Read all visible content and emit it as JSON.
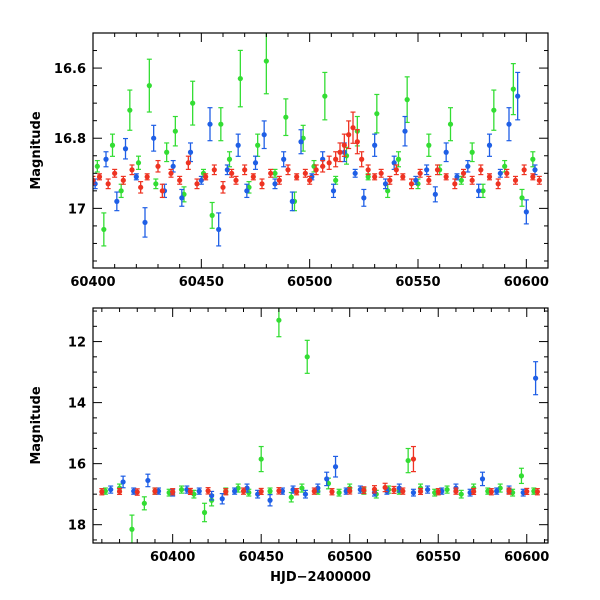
{
  "chart_data": [
    {
      "type": "scatter",
      "panel": "top",
      "title": "",
      "xlabel": "",
      "ylabel": "Magnitude",
      "xlim": [
        60400,
        60610
      ],
      "ylim": [
        17.17,
        16.5
      ],
      "y_inverted": true,
      "xticks": [
        "60400",
        "60450",
        "60500",
        "60550",
        "60600"
      ],
      "yticks": [
        "16.6",
        "16.8",
        "17"
      ],
      "grid": false,
      "legend": "none",
      "series": [
        {
          "color": "#33dd33",
          "points": [
            [
              60402,
              16.88
            ],
            [
              60405,
              17.06
            ],
            [
              60409,
              16.82
            ],
            [
              60413,
              16.95
            ],
            [
              60417,
              16.72
            ],
            [
              60421,
              16.87
            ],
            [
              60426,
              16.65
            ],
            [
              60429,
              16.93
            ],
            [
              60434,
              16.84
            ],
            [
              60438,
              16.78
            ],
            [
              60442,
              16.96
            ],
            [
              60446,
              16.7
            ],
            [
              60451,
              16.9
            ],
            [
              60455,
              17.02
            ],
            [
              60459,
              16.76
            ],
            [
              60463,
              16.86
            ],
            [
              60468,
              16.63
            ],
            [
              60472,
              16.94
            ],
            [
              60476,
              16.82
            ],
            [
              60480,
              16.58
            ],
            [
              60484,
              16.9
            ],
            [
              60489,
              16.74
            ],
            [
              60493,
              16.98
            ],
            [
              60497,
              16.8
            ],
            [
              60502,
              16.88
            ],
            [
              60507,
              16.68
            ],
            [
              60512,
              16.92
            ],
            [
              60517,
              16.85
            ],
            [
              60522,
              16.78
            ],
            [
              60527,
              16.91
            ],
            [
              60531,
              16.73
            ],
            [
              60536,
              16.95
            ],
            [
              60541,
              16.86
            ],
            [
              60545,
              16.69
            ],
            [
              60550,
              16.93
            ],
            [
              60555,
              16.82
            ],
            [
              60560,
              16.89
            ],
            [
              60565,
              16.76
            ],
            [
              60570,
              16.92
            ],
            [
              60575,
              16.84
            ],
            [
              60580,
              16.95
            ],
            [
              60585,
              16.72
            ],
            [
              60590,
              16.88
            ],
            [
              60594,
              16.66
            ],
            [
              60598,
              16.97
            ],
            [
              60603,
              16.86
            ]
          ]
        },
        {
          "color": "#1f5fe6",
          "points": [
            [
              60401,
              16.93
            ],
            [
              60406,
              16.86
            ],
            [
              60411,
              16.98
            ],
            [
              60415,
              16.83
            ],
            [
              60420,
              16.91
            ],
            [
              60424,
              17.04
            ],
            [
              60428,
              16.8
            ],
            [
              60433,
              16.95
            ],
            [
              60437,
              16.88
            ],
            [
              60441,
              16.97
            ],
            [
              60445,
              16.84
            ],
            [
              60450,
              16.92
            ],
            [
              60454,
              16.76
            ],
            [
              60458,
              17.06
            ],
            [
              60462,
              16.89
            ],
            [
              60467,
              16.82
            ],
            [
              60471,
              16.95
            ],
            [
              60475,
              16.87
            ],
            [
              60479,
              16.79
            ],
            [
              60484,
              16.93
            ],
            [
              60488,
              16.86
            ],
            [
              60492,
              16.98
            ],
            [
              60496,
              16.81
            ],
            [
              60501,
              16.91
            ],
            [
              60506,
              16.86
            ],
            [
              60511,
              16.95
            ],
            [
              60516,
              16.84
            ],
            [
              60521,
              16.9
            ],
            [
              60525,
              16.97
            ],
            [
              60530,
              16.82
            ],
            [
              60535,
              16.93
            ],
            [
              60539,
              16.87
            ],
            [
              60544,
              16.78
            ],
            [
              60549,
              16.92
            ],
            [
              60554,
              16.89
            ],
            [
              60558,
              16.96
            ],
            [
              60563,
              16.84
            ],
            [
              60568,
              16.91
            ],
            [
              60573,
              16.88
            ],
            [
              60578,
              16.95
            ],
            [
              60583,
              16.82
            ],
            [
              60588,
              16.9
            ],
            [
              60592,
              16.76
            ],
            [
              60596,
              16.68
            ],
            [
              60600,
              17.01
            ],
            [
              60604,
              16.89
            ]
          ]
        },
        {
          "color": "#ee3322",
          "points": [
            [
              60400,
              16.92
            ],
            [
              60403,
              16.91
            ],
            [
              60407,
              16.93
            ],
            [
              60410,
              16.9
            ],
            [
              60414,
              16.92
            ],
            [
              60418,
              16.89
            ],
            [
              60422,
              16.94
            ],
            [
              60425,
              16.91
            ],
            [
              60430,
              16.88
            ],
            [
              60432,
              16.95
            ],
            [
              60436,
              16.9
            ],
            [
              60440,
              16.92
            ],
            [
              60444,
              16.87
            ],
            [
              60448,
              16.93
            ],
            [
              60452,
              16.91
            ],
            [
              60456,
              16.89
            ],
            [
              60460,
              16.94
            ],
            [
              60464,
              16.9
            ],
            [
              60466,
              16.92
            ],
            [
              60470,
              16.89
            ],
            [
              60474,
              16.91
            ],
            [
              60478,
              16.93
            ],
            [
              60482,
              16.9
            ],
            [
              60486,
              16.92
            ],
            [
              60490,
              16.89
            ],
            [
              60494,
              16.91
            ],
            [
              60498,
              16.9
            ],
            [
              60500,
              16.92
            ],
            [
              60503,
              16.89
            ],
            [
              60506,
              16.88
            ],
            [
              60509,
              16.87
            ],
            [
              60512,
              16.86
            ],
            [
              60514,
              16.84
            ],
            [
              60516,
              16.82
            ],
            [
              60518,
              16.79
            ],
            [
              60520,
              16.77
            ],
            [
              60522,
              16.81
            ],
            [
              60524,
              16.86
            ],
            [
              60527,
              16.89
            ],
            [
              60530,
              16.91
            ],
            [
              60533,
              16.9
            ],
            [
              60537,
              16.92
            ],
            [
              60540,
              16.89
            ],
            [
              60543,
              16.91
            ],
            [
              60547,
              16.93
            ],
            [
              60551,
              16.9
            ],
            [
              60555,
              16.92
            ],
            [
              60559,
              16.89
            ],
            [
              60563,
              16.91
            ],
            [
              60567,
              16.93
            ],
            [
              60571,
              16.9
            ],
            [
              60575,
              16.92
            ],
            [
              60579,
              16.89
            ],
            [
              60583,
              16.91
            ],
            [
              60587,
              16.93
            ],
            [
              60591,
              16.9
            ],
            [
              60595,
              16.92
            ],
            [
              60599,
              16.89
            ],
            [
              60603,
              16.91
            ],
            [
              60606,
              16.92
            ]
          ]
        }
      ]
    },
    {
      "type": "scatter",
      "panel": "bottom",
      "title": "",
      "xlabel": "HJD−2400000",
      "ylabel": "Magnitude",
      "xlim": [
        60355,
        60612
      ],
      "ylim": [
        18.6,
        10.9
      ],
      "y_inverted": true,
      "xticks": [
        "60400",
        "60450",
        "60500",
        "60550",
        "60600"
      ],
      "yticks": [
        "12",
        "14",
        "16",
        "18"
      ],
      "grid": false,
      "legend": "none",
      "series": [
        {
          "color": "#33dd33",
          "points": [
            [
              60362,
              16.9
            ],
            [
              60370,
              16.8
            ],
            [
              60377,
              18.15
            ],
            [
              60384,
              17.3
            ],
            [
              60390,
              16.9
            ],
            [
              60398,
              16.95
            ],
            [
              60405,
              16.85
            ],
            [
              60412,
              17.0
            ],
            [
              60418,
              17.6
            ],
            [
              60422,
              17.2
            ],
            [
              60430,
              16.9
            ],
            [
              60437,
              16.8
            ],
            [
              60443,
              16.95
            ],
            [
              60450,
              15.85
            ],
            [
              60455,
              16.9
            ],
            [
              60460,
              11.3
            ],
            [
              60467,
              17.1
            ],
            [
              60473,
              16.8
            ],
            [
              60476,
              12.5
            ],
            [
              60482,
              16.9
            ],
            [
              60488,
              16.65
            ],
            [
              60494,
              16.95
            ],
            [
              60500,
              16.8
            ],
            [
              60508,
              16.9
            ],
            [
              60515,
              17.0
            ],
            [
              60522,
              16.85
            ],
            [
              60528,
              16.9
            ],
            [
              60533,
              15.9
            ],
            [
              60540,
              16.8
            ],
            [
              60548,
              16.95
            ],
            [
              60555,
              16.85
            ],
            [
              60563,
              17.0
            ],
            [
              60570,
              16.8
            ],
            [
              60578,
              16.9
            ],
            [
              60585,
              16.8
            ],
            [
              60592,
              16.95
            ],
            [
              60597,
              16.4
            ],
            [
              60604,
              16.9
            ]
          ]
        },
        {
          "color": "#1f5fe6",
          "points": [
            [
              60365,
              16.85
            ],
            [
              60372,
              16.6
            ],
            [
              60378,
              16.9
            ],
            [
              60386,
              16.55
            ],
            [
              60392,
              16.9
            ],
            [
              60400,
              16.95
            ],
            [
              60408,
              16.85
            ],
            [
              60415,
              16.9
            ],
            [
              60422,
              17.05
            ],
            [
              60428,
              17.15
            ],
            [
              60435,
              16.9
            ],
            [
              60442,
              16.8
            ],
            [
              60448,
              17.0
            ],
            [
              60455,
              17.2
            ],
            [
              60462,
              16.9
            ],
            [
              60468,
              16.85
            ],
            [
              60475,
              17.0
            ],
            [
              60482,
              16.8
            ],
            [
              60487,
              16.5
            ],
            [
              60492,
              16.1
            ],
            [
              60498,
              16.9
            ],
            [
              60506,
              16.85
            ],
            [
              60514,
              16.95
            ],
            [
              60521,
              16.9
            ],
            [
              60528,
              16.8
            ],
            [
              60536,
              16.95
            ],
            [
              60544,
              16.85
            ],
            [
              60552,
              16.9
            ],
            [
              60560,
              16.8
            ],
            [
              60568,
              16.95
            ],
            [
              60575,
              16.5
            ],
            [
              60583,
              16.9
            ],
            [
              60590,
              16.85
            ],
            [
              60598,
              16.95
            ],
            [
              60605,
              13.2
            ]
          ]
        },
        {
          "color": "#ee3322",
          "points": [
            [
              60360,
              16.92
            ],
            [
              60370,
              16.91
            ],
            [
              60380,
              16.93
            ],
            [
              60390,
              16.9
            ],
            [
              60400,
              16.92
            ],
            [
              60410,
              16.91
            ],
            [
              60420,
              16.89
            ],
            [
              60430,
              16.92
            ],
            [
              60440,
              16.9
            ],
            [
              60450,
              16.91
            ],
            [
              60460,
              16.89
            ],
            [
              60470,
              16.92
            ],
            [
              60480,
              16.9
            ],
            [
              60490,
              16.92
            ],
            [
              60500,
              16.89
            ],
            [
              60508,
              16.87
            ],
            [
              60514,
              16.84
            ],
            [
              60520,
              16.78
            ],
            [
              60525,
              16.86
            ],
            [
              60530,
              16.9
            ],
            [
              60536,
              15.85
            ],
            [
              60540,
              16.91
            ],
            [
              60550,
              16.92
            ],
            [
              60560,
              16.9
            ],
            [
              60570,
              16.91
            ],
            [
              60580,
              16.92
            ],
            [
              60590,
              16.9
            ],
            [
              60600,
              16.91
            ],
            [
              60606,
              16.92
            ]
          ]
        }
      ]
    }
  ]
}
